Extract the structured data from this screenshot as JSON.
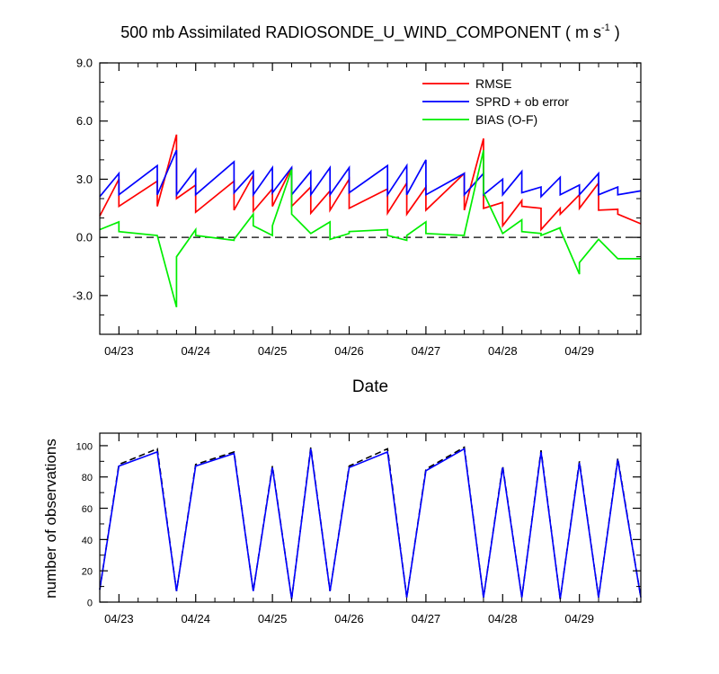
{
  "chart_data": [
    {
      "type": "line",
      "title": "500 mb Assimilated RADIOSONDE_U_WIND_COMPONENT",
      "title_units_prefix": "( m s",
      "title_units_exp": "-1",
      "title_units_suffix": " )",
      "xlabel": "Date",
      "ylabel": "",
      "x_unit": "day",
      "xlim": [
        0,
        7.05
      ],
      "ylim": [
        -5.0,
        9.0
      ],
      "yticks": [
        -3.0,
        0.0,
        3.0,
        6.0,
        9.0
      ],
      "ytick_labels": [
        "-3.0",
        "0.0",
        "3.0",
        "6.0",
        "9.0"
      ],
      "xticks": [
        0.25,
        1.25,
        2.25,
        3.25,
        4.25,
        5.25,
        6.25
      ],
      "xtick_labels": [
        "04/23",
        "04/24",
        "04/25",
        "04/26",
        "04/27",
        "04/28",
        "04/29"
      ],
      "zero_line": "dashed",
      "legend": {
        "placement": "top-right"
      },
      "series": [
        {
          "name": "RMSE",
          "color": "#ff0000",
          "x": [
            0.0,
            0.25,
            0.25,
            0.75,
            0.75,
            1.0,
            1.0,
            1.25,
            1.25,
            1.75,
            1.75,
            2.0,
            2.0,
            2.25,
            2.25,
            2.5,
            2.5,
            2.75,
            2.75,
            3.0,
            3.0,
            3.25,
            3.25,
            3.75,
            3.75,
            4.0,
            4.0,
            4.25,
            4.25,
            4.75,
            4.75,
            5.0,
            5.0,
            5.25,
            5.25,
            5.5,
            5.5,
            5.75,
            5.75,
            6.0,
            6.0,
            6.25,
            6.25,
            6.5,
            6.5,
            6.75,
            6.75,
            7.05
          ],
          "y": [
            1.1,
            3.0,
            1.6,
            2.9,
            1.6,
            5.3,
            2.0,
            2.7,
            1.3,
            2.9,
            1.4,
            3.2,
            1.35,
            2.5,
            1.6,
            3.6,
            1.6,
            2.6,
            1.25,
            2.4,
            1.4,
            3.0,
            1.5,
            2.5,
            1.25,
            2.8,
            1.2,
            2.6,
            1.4,
            3.3,
            1.4,
            5.1,
            1.5,
            1.8,
            0.6,
            1.9,
            1.6,
            1.5,
            0.4,
            1.5,
            1.2,
            2.2,
            1.5,
            2.8,
            1.4,
            1.45,
            1.2,
            0.7
          ]
        },
        {
          "name": "SPRD + ob error",
          "color": "#0000ff",
          "x": [
            0.0,
            0.25,
            0.25,
            0.75,
            0.75,
            1.0,
            1.0,
            1.25,
            1.25,
            1.75,
            1.75,
            2.0,
            2.0,
            2.25,
            2.25,
            2.5,
            2.5,
            2.75,
            2.75,
            3.0,
            3.0,
            3.25,
            3.25,
            3.75,
            3.75,
            4.0,
            4.0,
            4.25,
            4.25,
            4.75,
            4.75,
            5.0,
            5.0,
            5.25,
            5.25,
            5.5,
            5.5,
            5.75,
            5.75,
            6.0,
            6.0,
            6.25,
            6.25,
            6.5,
            6.5,
            6.75,
            6.75,
            7.05
          ],
          "y": [
            2.1,
            3.3,
            2.2,
            3.7,
            2.2,
            4.5,
            2.2,
            3.5,
            2.2,
            3.9,
            2.3,
            3.4,
            2.2,
            3.6,
            2.3,
            3.6,
            2.2,
            3.4,
            2.2,
            3.6,
            2.2,
            3.6,
            2.3,
            3.7,
            2.2,
            3.7,
            2.2,
            4.0,
            2.2,
            3.3,
            2.2,
            3.3,
            2.2,
            3.0,
            2.2,
            3.4,
            2.3,
            2.6,
            2.1,
            3.1,
            2.2,
            2.7,
            2.2,
            3.3,
            2.2,
            2.6,
            2.2,
            2.4
          ]
        },
        {
          "name": "BIAS (O-F)",
          "color": "#00ee00",
          "x": [
            0.0,
            0.25,
            0.25,
            0.75,
            0.75,
            1.0,
            1.0,
            1.25,
            1.25,
            1.75,
            1.75,
            2.0,
            2.0,
            2.25,
            2.25,
            2.5,
            2.5,
            2.75,
            2.75,
            3.0,
            3.0,
            3.25,
            3.25,
            3.75,
            3.75,
            4.0,
            4.0,
            4.25,
            4.25,
            4.75,
            4.75,
            5.0,
            5.0,
            5.25,
            5.25,
            5.5,
            5.5,
            5.75,
            5.75,
            6.0,
            6.0,
            6.25,
            6.25,
            6.5,
            6.5,
            6.75,
            6.75,
            7.05
          ],
          "y": [
            0.4,
            0.8,
            0.3,
            0.1,
            0.1,
            -3.6,
            -1.0,
            0.4,
            0.1,
            -0.15,
            -0.1,
            1.2,
            0.6,
            0.1,
            0.6,
            3.5,
            1.2,
            0.2,
            0.2,
            0.8,
            -0.1,
            0.2,
            0.3,
            0.4,
            0.1,
            -0.15,
            0.1,
            0.8,
            0.2,
            0.1,
            0.15,
            4.5,
            2.3,
            0.2,
            0.2,
            0.9,
            0.3,
            0.2,
            0.1,
            0.5,
            0.4,
            -1.9,
            -1.3,
            -0.1,
            -0.1,
            -1.1,
            -1.1,
            -1.1
          ]
        }
      ]
    },
    {
      "type": "line",
      "title": "",
      "xlabel": "",
      "ylabel": "number of observations",
      "xlim": [
        0,
        7.05
      ],
      "ylim": [
        0,
        108
      ],
      "yticks": [
        0,
        20,
        40,
        60,
        80,
        100
      ],
      "ytick_labels": [
        "0",
        "20",
        "40",
        "60",
        "80",
        "100"
      ],
      "xticks": [
        0.25,
        1.25,
        2.25,
        3.25,
        4.25,
        5.25,
        6.25
      ],
      "xtick_labels": [
        "04/23",
        "04/24",
        "04/25",
        "04/26",
        "04/27",
        "04/28",
        "04/29"
      ],
      "series": [
        {
          "style": "dashed",
          "color": "#000000",
          "x": [
            0.0,
            0.25,
            0.75,
            1.0,
            1.25,
            1.75,
            2.0,
            2.25,
            2.5,
            2.75,
            3.0,
            3.25,
            3.75,
            4.0,
            4.25,
            4.75,
            5.0,
            5.25,
            5.5,
            5.75,
            6.0,
            6.25,
            6.5,
            6.75,
            7.05
          ],
          "y": [
            8,
            88,
            98,
            7,
            88,
            96,
            7,
            87,
            2,
            99,
            7,
            87,
            98,
            3,
            85,
            99,
            3,
            87,
            3,
            97,
            2,
            90,
            3,
            92,
            3
          ]
        },
        {
          "style": "solid",
          "color": "#0000ff",
          "x": [
            0.0,
            0.25,
            0.75,
            1.0,
            1.25,
            1.75,
            2.0,
            2.25,
            2.5,
            2.75,
            3.0,
            3.25,
            3.75,
            4.0,
            4.25,
            4.75,
            5.0,
            5.25,
            5.5,
            5.75,
            6.0,
            6.25,
            6.5,
            6.75,
            7.05
          ],
          "y": [
            8,
            87,
            96,
            7,
            87,
            95,
            7,
            86,
            2,
            98,
            7,
            86,
            96,
            3,
            84,
            98,
            3,
            86,
            3,
            96,
            2,
            89,
            3,
            91,
            3
          ]
        }
      ]
    }
  ]
}
